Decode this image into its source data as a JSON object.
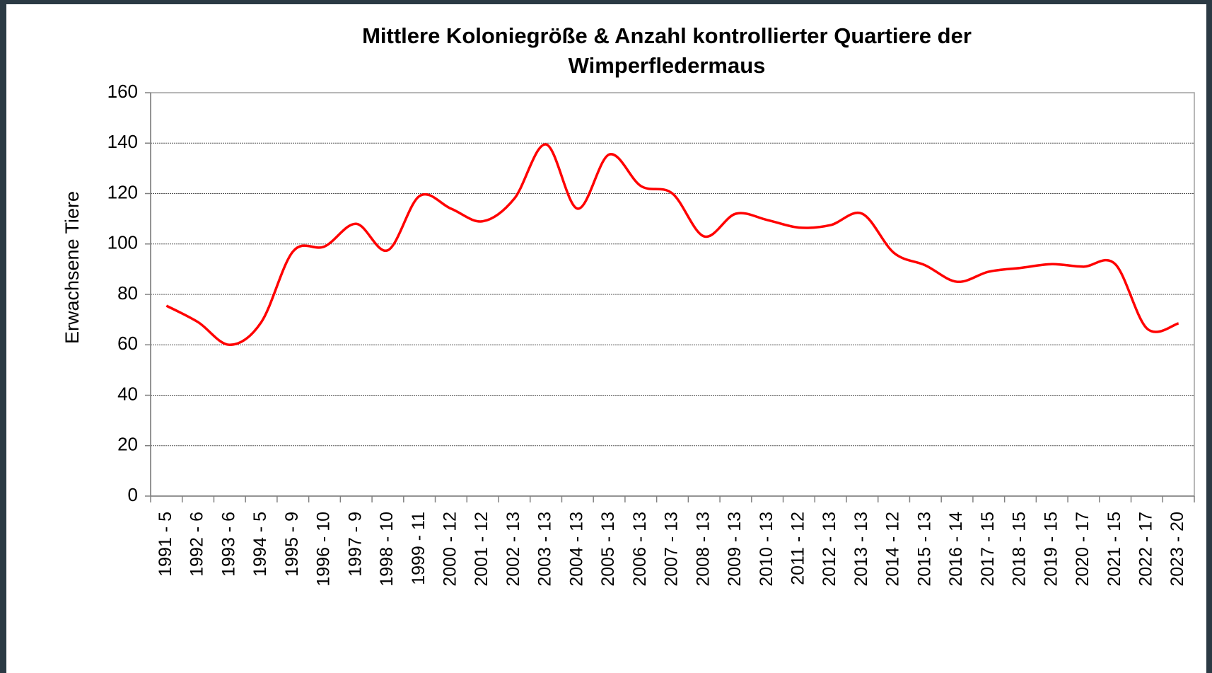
{
  "chart_data": {
    "type": "line",
    "title": "Mittlere Koloniegröße & Anzahl kontrollierter Quartiere der Wimperfledermaus",
    "y_label": "Erwachsene Tiere",
    "categories": [
      "1991 - 5",
      "1992 - 6",
      "1993 - 6",
      "1994 - 5",
      "1995 - 9",
      "1996 - 10",
      "1997 - 9",
      "1998 - 10",
      "1999 - 11",
      "2000 - 12",
      "2001 - 12",
      "2002 - 13",
      "2003 - 13",
      "2004 - 13",
      "2005 - 13",
      "2006 - 13",
      "2007 - 13",
      "2008 - 13",
      "2009 - 13",
      "2010 - 13",
      "2011 - 12",
      "2012 - 13",
      "2013 - 13",
      "2014 - 12",
      "2015 - 13",
      "2016 - 14",
      "2017 - 15",
      "2018 - 15",
      "2019 - 15",
      "2020 - 17",
      "2021 - 15",
      "2022 - 17",
      "2023 - 20"
    ],
    "series": [
      {
        "color": "#ff0000",
        "values": [
          75.5,
          69,
          60,
          69,
          97,
          99,
          108,
          97.5,
          119,
          114,
          109,
          118,
          139.5,
          114,
          135.5,
          123,
          120,
          103,
          112,
          109.5,
          106.5,
          107.5,
          112,
          96.5,
          91.5,
          85,
          89,
          90.5,
          92,
          91,
          92,
          66.5,
          68.5
        ]
      }
    ],
    "ylim": [
      0,
      160
    ],
    "yticks": [
      0,
      20,
      40,
      60,
      80,
      100,
      120,
      140,
      160
    ],
    "grid": true,
    "smooth": true
  }
}
